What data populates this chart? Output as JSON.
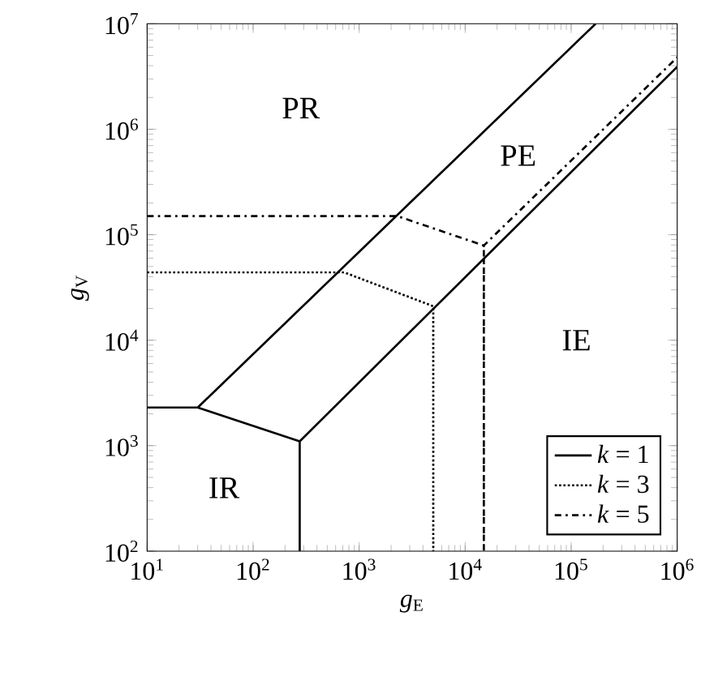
{
  "chart_data": {
    "type": "line",
    "xlabel": "*g*$_{E}$",
    "ylabel": "*g*$_{V}$",
    "log": "xy",
    "xlim": [
      10,
      1000000
    ],
    "ylim": [
      100,
      10000000
    ],
    "xticks": [
      {
        "value": 10,
        "label": "10$^{1}$"
      },
      {
        "value": 100,
        "label": "10$^{2}$"
      },
      {
        "value": 1000,
        "label": "10$^{3}$"
      },
      {
        "value": 10000,
        "label": "10$^{4}$"
      },
      {
        "value": 100000,
        "label": "10$^{5}$"
      },
      {
        "value": 1000000,
        "label": "10$^{6}$"
      }
    ],
    "yticks": [
      {
        "value": 100,
        "label": "10$^{2}$"
      },
      {
        "value": 1000,
        "label": "10$^{3}$"
      },
      {
        "value": 10000,
        "label": "10$^{4}$"
      },
      {
        "value": 100000,
        "label": "10$^{5}$"
      },
      {
        "value": 1000000,
        "label": "10$^{6}$"
      },
      {
        "value": 10000000,
        "label": "10$^{7}$"
      }
    ],
    "series": [
      {
        "name": "*k* = 1",
        "color": "#000000",
        "line_style": "solid",
        "x": [
          170000,
          30,
          10,
          30,
          275,
          275,
          275,
          1000000
        ],
        "values": [
          10000000,
          2300,
          2300,
          2300,
          1100,
          100,
          1100,
          3900000
        ]
      },
      {
        "name": "*k* = 3",
        "color": "#000000",
        "line_style": "dotted",
        "x": [
          10,
          720,
          5000,
          5000
        ],
        "values": [
          44000,
          44000,
          21000,
          100
        ]
      },
      {
        "name": "*k* = 5",
        "color": "#000000",
        "line_style": "dashdot",
        "x": [
          10,
          2300,
          15000,
          15000,
          15000,
          1000000
        ],
        "values": [
          150000,
          150000,
          79000,
          100,
          79000,
          4800000
        ]
      }
    ],
    "annotations": [
      "PR",
      "PE",
      "IE",
      "IR"
    ],
    "legend": "bottom right",
    "grid": false,
    "marker": "none"
  }
}
